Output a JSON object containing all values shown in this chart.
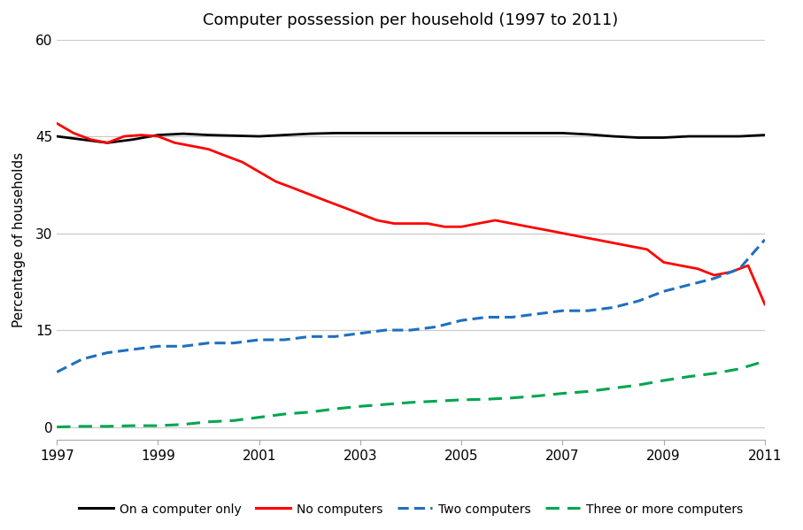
{
  "title": "Computer possession per household (1997 to 2011)",
  "ylabel": "Percentage of households",
  "xlim": [
    1997,
    2011
  ],
  "ylim": [
    -2,
    60
  ],
  "yticks": [
    0,
    15,
    30,
    45,
    60
  ],
  "xticks": [
    1997,
    1999,
    2001,
    2003,
    2005,
    2007,
    2009,
    2011
  ],
  "background_color": "#ffffff",
  "one_computer": {
    "label": "On a computer only",
    "color": "#000000",
    "x": [
      1997,
      1997.5,
      1998,
      1998.5,
      1999,
      1999.5,
      2000,
      2000.5,
      2001,
      2001.5,
      2002,
      2002.5,
      2003,
      2003.5,
      2004,
      2004.5,
      2005,
      2005.5,
      2006,
      2006.5,
      2007,
      2007.5,
      2008,
      2008.5,
      2009,
      2009.5,
      2010,
      2010.5,
      2011
    ],
    "y": [
      45,
      44.5,
      44,
      44.5,
      45.2,
      45.4,
      45.2,
      45.1,
      45,
      45.2,
      45.4,
      45.5,
      45.5,
      45.5,
      45.5,
      45.5,
      45.5,
      45.5,
      45.5,
      45.5,
      45.5,
      45.3,
      45.0,
      44.8,
      44.8,
      45.0,
      45.0,
      45.0,
      45.2
    ]
  },
  "no_computer": {
    "label": "No computers",
    "color": "#ff0000",
    "x": [
      1997,
      1997.33,
      1997.67,
      1998,
      1998.33,
      1998.67,
      1999,
      1999.33,
      1999.67,
      2000,
      2000.33,
      2000.67,
      2001,
      2001.33,
      2001.67,
      2002,
      2002.33,
      2002.67,
      2003,
      2003.33,
      2003.67,
      2004,
      2004.33,
      2004.67,
      2005,
      2005.33,
      2005.67,
      2006,
      2006.33,
      2006.67,
      2007,
      2007.33,
      2007.67,
      2008,
      2008.33,
      2008.67,
      2009,
      2009.33,
      2009.67,
      2010,
      2010.33,
      2010.67,
      2011
    ],
    "y": [
      47,
      45.5,
      44.5,
      44,
      45,
      45.2,
      45.0,
      44,
      43.5,
      43,
      42,
      41,
      39.5,
      38,
      37,
      36,
      35,
      34,
      33,
      32,
      31.5,
      31.5,
      31.5,
      31,
      31,
      31.5,
      32,
      31.5,
      31,
      30.5,
      30,
      29.5,
      29,
      28.5,
      28,
      27.5,
      25.5,
      25,
      24.5,
      23.5,
      24,
      25,
      19
    ]
  },
  "two_computers": {
    "label": "Two computers",
    "color": "#1f6fbf",
    "x": [
      1997,
      1997.5,
      1998,
      1998.5,
      1999,
      1999.5,
      2000,
      2000.5,
      2001,
      2001.5,
      2002,
      2002.5,
      2003,
      2003.5,
      2004,
      2004.5,
      2005,
      2005.5,
      2006,
      2006.5,
      2007,
      2007.5,
      2008,
      2008.5,
      2009,
      2009.5,
      2010,
      2010.5,
      2011
    ],
    "y": [
      8.5,
      10.5,
      11.5,
      12,
      12.5,
      12.5,
      13,
      13,
      13.5,
      13.5,
      14,
      14,
      14.5,
      15,
      15,
      15.5,
      16.5,
      17,
      17,
      17.5,
      18,
      18,
      18.5,
      19.5,
      21,
      22,
      23,
      24.5,
      29
    ]
  },
  "three_computers": {
    "label": "Three or more computers",
    "color": "#00a550",
    "x": [
      1997,
      1997.5,
      1998,
      1998.5,
      1999,
      1999.5,
      2000,
      2000.5,
      2001,
      2001.5,
      2002,
      2002.5,
      2003,
      2003.5,
      2004,
      2004.5,
      2005,
      2005.5,
      2006,
      2006.5,
      2007,
      2007.5,
      2008,
      2008.5,
      2009,
      2009.5,
      2010,
      2010.5,
      2011
    ],
    "y": [
      0.0,
      0.1,
      0.1,
      0.2,
      0.2,
      0.4,
      0.8,
      1.0,
      1.5,
      2.0,
      2.3,
      2.8,
      3.2,
      3.5,
      3.8,
      4.0,
      4.2,
      4.3,
      4.5,
      4.8,
      5.2,
      5.5,
      6.0,
      6.5,
      7.2,
      7.8,
      8.3,
      9.0,
      10.2
    ]
  },
  "legend_labels": [
    "On a computer only",
    "No computers",
    "Two computers",
    "Three or more computers"
  ],
  "legend_colors": [
    "#000000",
    "#ff0000",
    "#1f6fbf",
    "#00a550"
  ],
  "legend_styles": [
    "solid",
    "solid",
    "dashed",
    "dashed"
  ]
}
